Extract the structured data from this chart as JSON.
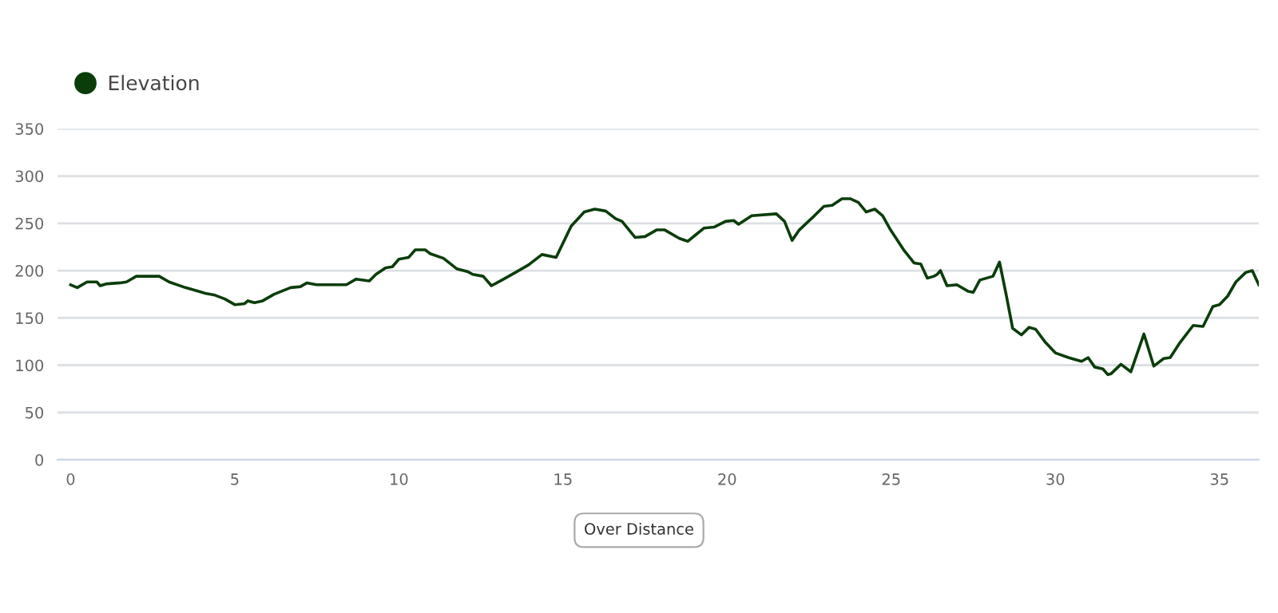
{
  "chart_data": {
    "type": "line",
    "x": [
      0,
      0.2,
      0.5,
      0.8,
      0.9,
      1.1,
      1.5,
      1.7,
      2.0,
      2.7,
      3.0,
      3.5,
      4.1,
      4.4,
      4.7,
      5.0,
      5.3,
      5.4,
      5.6,
      5.85,
      6.2,
      6.7,
      7.0,
      7.2,
      7.5,
      8.4,
      8.7,
      9.1,
      9.3,
      9.6,
      9.8,
      10.0,
      10.3,
      10.5,
      10.8,
      10.95,
      11.36,
      11.76,
      12.09,
      12.25,
      12.57,
      12.82,
      13.14,
      13.55,
      13.95,
      14.36,
      14.79,
      15.0,
      15.25,
      15.65,
      15.97,
      16.3,
      16.6,
      16.8,
      17.2,
      17.5,
      17.85,
      18.1,
      18.55,
      18.8,
      19.05,
      19.3,
      19.6,
      19.95,
      20.2,
      20.35,
      20.75,
      21.5,
      21.75,
      21.98,
      22.2,
      22.6,
      22.95,
      23.2,
      23.5,
      23.75,
      24.0,
      24.24,
      24.5,
      24.74,
      24.98,
      25.4,
      25.7,
      25.9,
      26.1,
      26.3,
      26.4,
      26.5,
      26.7,
      27.0,
      27.35,
      27.5,
      27.7,
      28.1,
      28.3,
      28.5,
      28.7,
      28.97,
      29.2,
      29.4,
      29.7,
      30.0,
      30.4,
      30.8,
      31.0,
      31.2,
      31.45,
      31.6,
      31.7,
      32.0,
      32.3,
      32.7,
      33.0,
      33.3,
      33.5,
      33.8,
      34.2,
      34.5,
      34.8,
      35.0,
      35.25,
      35.5,
      35.8,
      36.0,
      36.2
    ],
    "series": [
      {
        "name": "Elevation",
        "color": "#0b3d0b",
        "values": [
          185,
          182,
          188,
          188,
          184,
          186,
          187,
          188,
          194,
          194,
          188,
          182,
          176,
          174,
          170,
          164,
          165,
          168,
          166,
          168,
          175,
          182,
          183,
          187,
          185,
          185,
          191,
          189,
          196,
          203,
          204,
          212,
          214,
          222,
          222,
          218,
          213,
          202,
          199,
          196,
          194,
          184,
          190,
          198,
          206,
          217,
          214,
          229,
          247,
          262,
          265,
          263,
          255,
          252,
          235,
          236,
          243,
          243,
          234,
          231,
          238,
          245,
          246,
          252,
          253,
          249,
          258,
          260,
          252,
          232,
          243,
          256,
          268,
          269,
          276,
          276,
          272,
          262,
          265,
          258,
          243,
          221,
          208,
          207,
          192,
          194,
          196,
          200,
          184,
          185,
          178,
          177,
          190,
          194,
          209,
          175,
          139,
          132,
          140,
          138,
          124,
          113,
          108,
          104,
          108,
          98,
          96,
          90,
          91,
          101,
          93,
          133,
          99,
          107,
          108,
          124,
          142,
          141,
          162,
          164,
          173,
          188,
          198,
          200,
          185
        ]
      }
    ],
    "xlim": [
      -0.4,
      36.2
    ],
    "xticks": [
      0,
      5,
      10,
      15,
      20,
      25,
      30,
      35
    ],
    "ylim": [
      0,
      350
    ],
    "yticks": [
      0,
      50,
      100,
      150,
      200,
      250,
      300,
      350
    ],
    "grid": "y",
    "legend": "top left",
    "marker": "none",
    "line_style": "solid",
    "annotations": [
      "Over Distance"
    ]
  }
}
